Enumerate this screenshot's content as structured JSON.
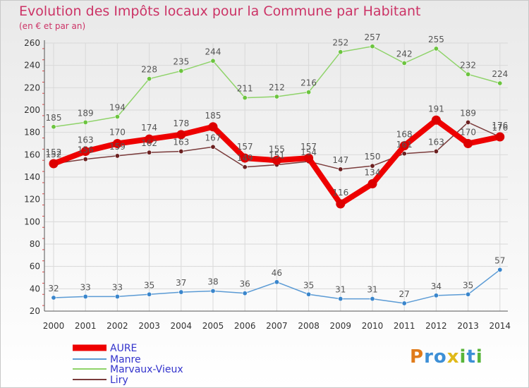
{
  "title": "Evolution des Impôts locaux pour la Commune par Habitant",
  "subtitle": "(en € et par an)",
  "logo": "Proxiti",
  "chart_data": {
    "type": "line",
    "title": "Evolution des Impôts locaux pour la Commune par Habitant",
    "subtitle": "(en € et par an)",
    "xlabel": "",
    "ylabel": "",
    "ylim": [
      20,
      260
    ],
    "yticks": [
      20,
      40,
      60,
      80,
      100,
      120,
      140,
      160,
      180,
      200,
      220,
      240,
      260
    ],
    "grid": true,
    "legend_position": "bottom-left",
    "categories": [
      "2000",
      "2001",
      "2002",
      "2003",
      "2004",
      "2005",
      "2006",
      "2007",
      "2008",
      "2009",
      "2010",
      "2011",
      "2012",
      "2013",
      "2014"
    ],
    "series": [
      {
        "name": "AURE",
        "color": "#ee0000",
        "values": [
          152,
          163,
          170,
          174,
          178,
          185,
          157,
          155,
          157,
          116,
          134,
          168,
          191,
          170,
          176
        ]
      },
      {
        "name": "Manre",
        "color": "#5b9bd5",
        "values": [
          32,
          33,
          33,
          35,
          37,
          38,
          36,
          46,
          35,
          31,
          31,
          27,
          34,
          35,
          57
        ]
      },
      {
        "name": "Marvaux-Vieux",
        "color": "#8fd36a",
        "values": [
          185,
          189,
          194,
          228,
          235,
          244,
          211,
          212,
          216,
          252,
          257,
          242,
          255,
          232,
          224
        ]
      },
      {
        "name": "Liry",
        "color": "#7a3b3b",
        "values": [
          152,
          156,
          159,
          162,
          163,
          167,
          149,
          151,
          154,
          147,
          150,
          161,
          163,
          189,
          176
        ]
      }
    ]
  }
}
